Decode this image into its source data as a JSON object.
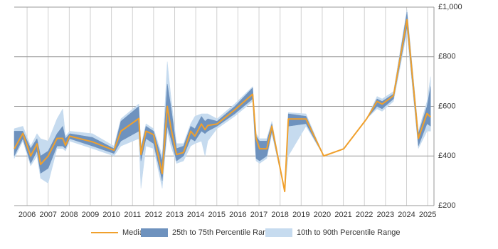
{
  "chart_data": {
    "type": "line",
    "x": [
      2005.39,
      2005.8,
      2006.17,
      2006.47,
      2006.64,
      2007.0,
      2007.42,
      2007.69,
      2007.82,
      2008.02,
      2009.1,
      2010.12,
      2010.45,
      2011.3,
      2011.4,
      2011.64,
      2012.0,
      2012.41,
      2012.65,
      2012.82,
      2013.09,
      2013.42,
      2013.76,
      2013.96,
      2014.27,
      2014.44,
      2014.57,
      2015.01,
      2015.85,
      2016.7,
      2016.86,
      2017.03,
      2017.37,
      2017.61,
      2018.22,
      2018.39,
      2019.23,
      2020.07,
      2021.02,
      2022.1,
      2022.6,
      2022.84,
      2023.38,
      2024.02,
      2024.56,
      2024.97,
      2025.14
    ],
    "series": [
      {
        "name": "10th to 90th Percentile Range",
        "color": "#c6dbef",
        "low": [
          390,
          460,
          360,
          400,
          310,
          290,
          430,
          430,
          420,
          460,
          430,
          400,
          440,
          470,
          270,
          440,
          430,
          270,
          500,
          440,
          370,
          380,
          440,
          450,
          460,
          400,
          460,
          510,
          560,
          620,
          380,
          370,
          390,
          490,
          257,
          400,
          520,
          400,
          429,
          549,
          590,
          580,
          620,
          900,
          430,
          500,
          500
        ],
        "high": [
          510,
          520,
          440,
          490,
          470,
          460,
          550,
          590,
          480,
          500,
          490,
          440,
          550,
          610,
          440,
          530,
          510,
          400,
          780,
          640,
          450,
          450,
          530,
          560,
          570,
          570,
          570,
          550,
          610,
          680,
          490,
          470,
          470,
          540,
          257,
          575,
          570,
          400,
          429,
          549,
          640,
          630,
          660,
          990,
          500,
          620,
          720
        ]
      },
      {
        "name": "25th to 75th Percentile Range",
        "color": "#6e92be",
        "low": [
          400,
          470,
          370,
          420,
          330,
          350,
          440,
          440,
          430,
          470,
          440,
          410,
          460,
          500,
          380,
          470,
          450,
          300,
          520,
          470,
          380,
          400,
          470,
          460,
          500,
          490,
          500,
          520,
          570,
          630,
          390,
          380,
          400,
          500,
          257,
          520,
          530,
          400,
          429,
          549,
          600,
          590,
          630,
          920,
          440,
          530,
          520
        ],
        "high": [
          500,
          500,
          430,
          470,
          400,
          420,
          490,
          520,
          470,
          490,
          475,
          430,
          540,
          600,
          430,
          520,
          500,
          380,
          690,
          600,
          430,
          440,
          520,
          510,
          560,
          540,
          550,
          540,
          600,
          675,
          480,
          460,
          460,
          530,
          257,
          570,
          560,
          400,
          429,
          549,
          630,
          620,
          650,
          980,
          490,
          600,
          680
        ]
      },
      {
        "name": "Median",
        "color": "#f0a02c",
        "values": [
          429,
          491,
          400,
          449,
          366,
          400,
          471,
          471,
          443,
          480,
          457,
          423,
          500,
          551,
          406,
          500,
          486,
          329,
          600,
          514,
          406,
          414,
          500,
          480,
          529,
          506,
          523,
          529,
          586,
          649,
          471,
          429,
          429,
          520,
          257,
          549,
          549,
          400,
          429,
          549,
          620,
          609,
          643,
          949,
          471,
          571,
          557
        ]
      }
    ],
    "xlim": [
      2005.39,
      2025.3
    ],
    "xticks": [
      2006,
      2007,
      2008,
      2009,
      2010,
      2011,
      2012,
      2013,
      2014,
      2015,
      2016,
      2017,
      2018,
      2019,
      2020,
      2021,
      2022,
      2023,
      2024,
      2025
    ],
    "ylim": [
      200,
      1000
    ],
    "yticks": [
      {
        "value": 200,
        "label": "£200"
      },
      {
        "value": 400,
        "label": "£400"
      },
      {
        "value": 600,
        "label": "£600"
      },
      {
        "value": 800,
        "label": "£800"
      },
      {
        "value": 1000,
        "label": "£1,000"
      }
    ],
    "grid": true
  }
}
